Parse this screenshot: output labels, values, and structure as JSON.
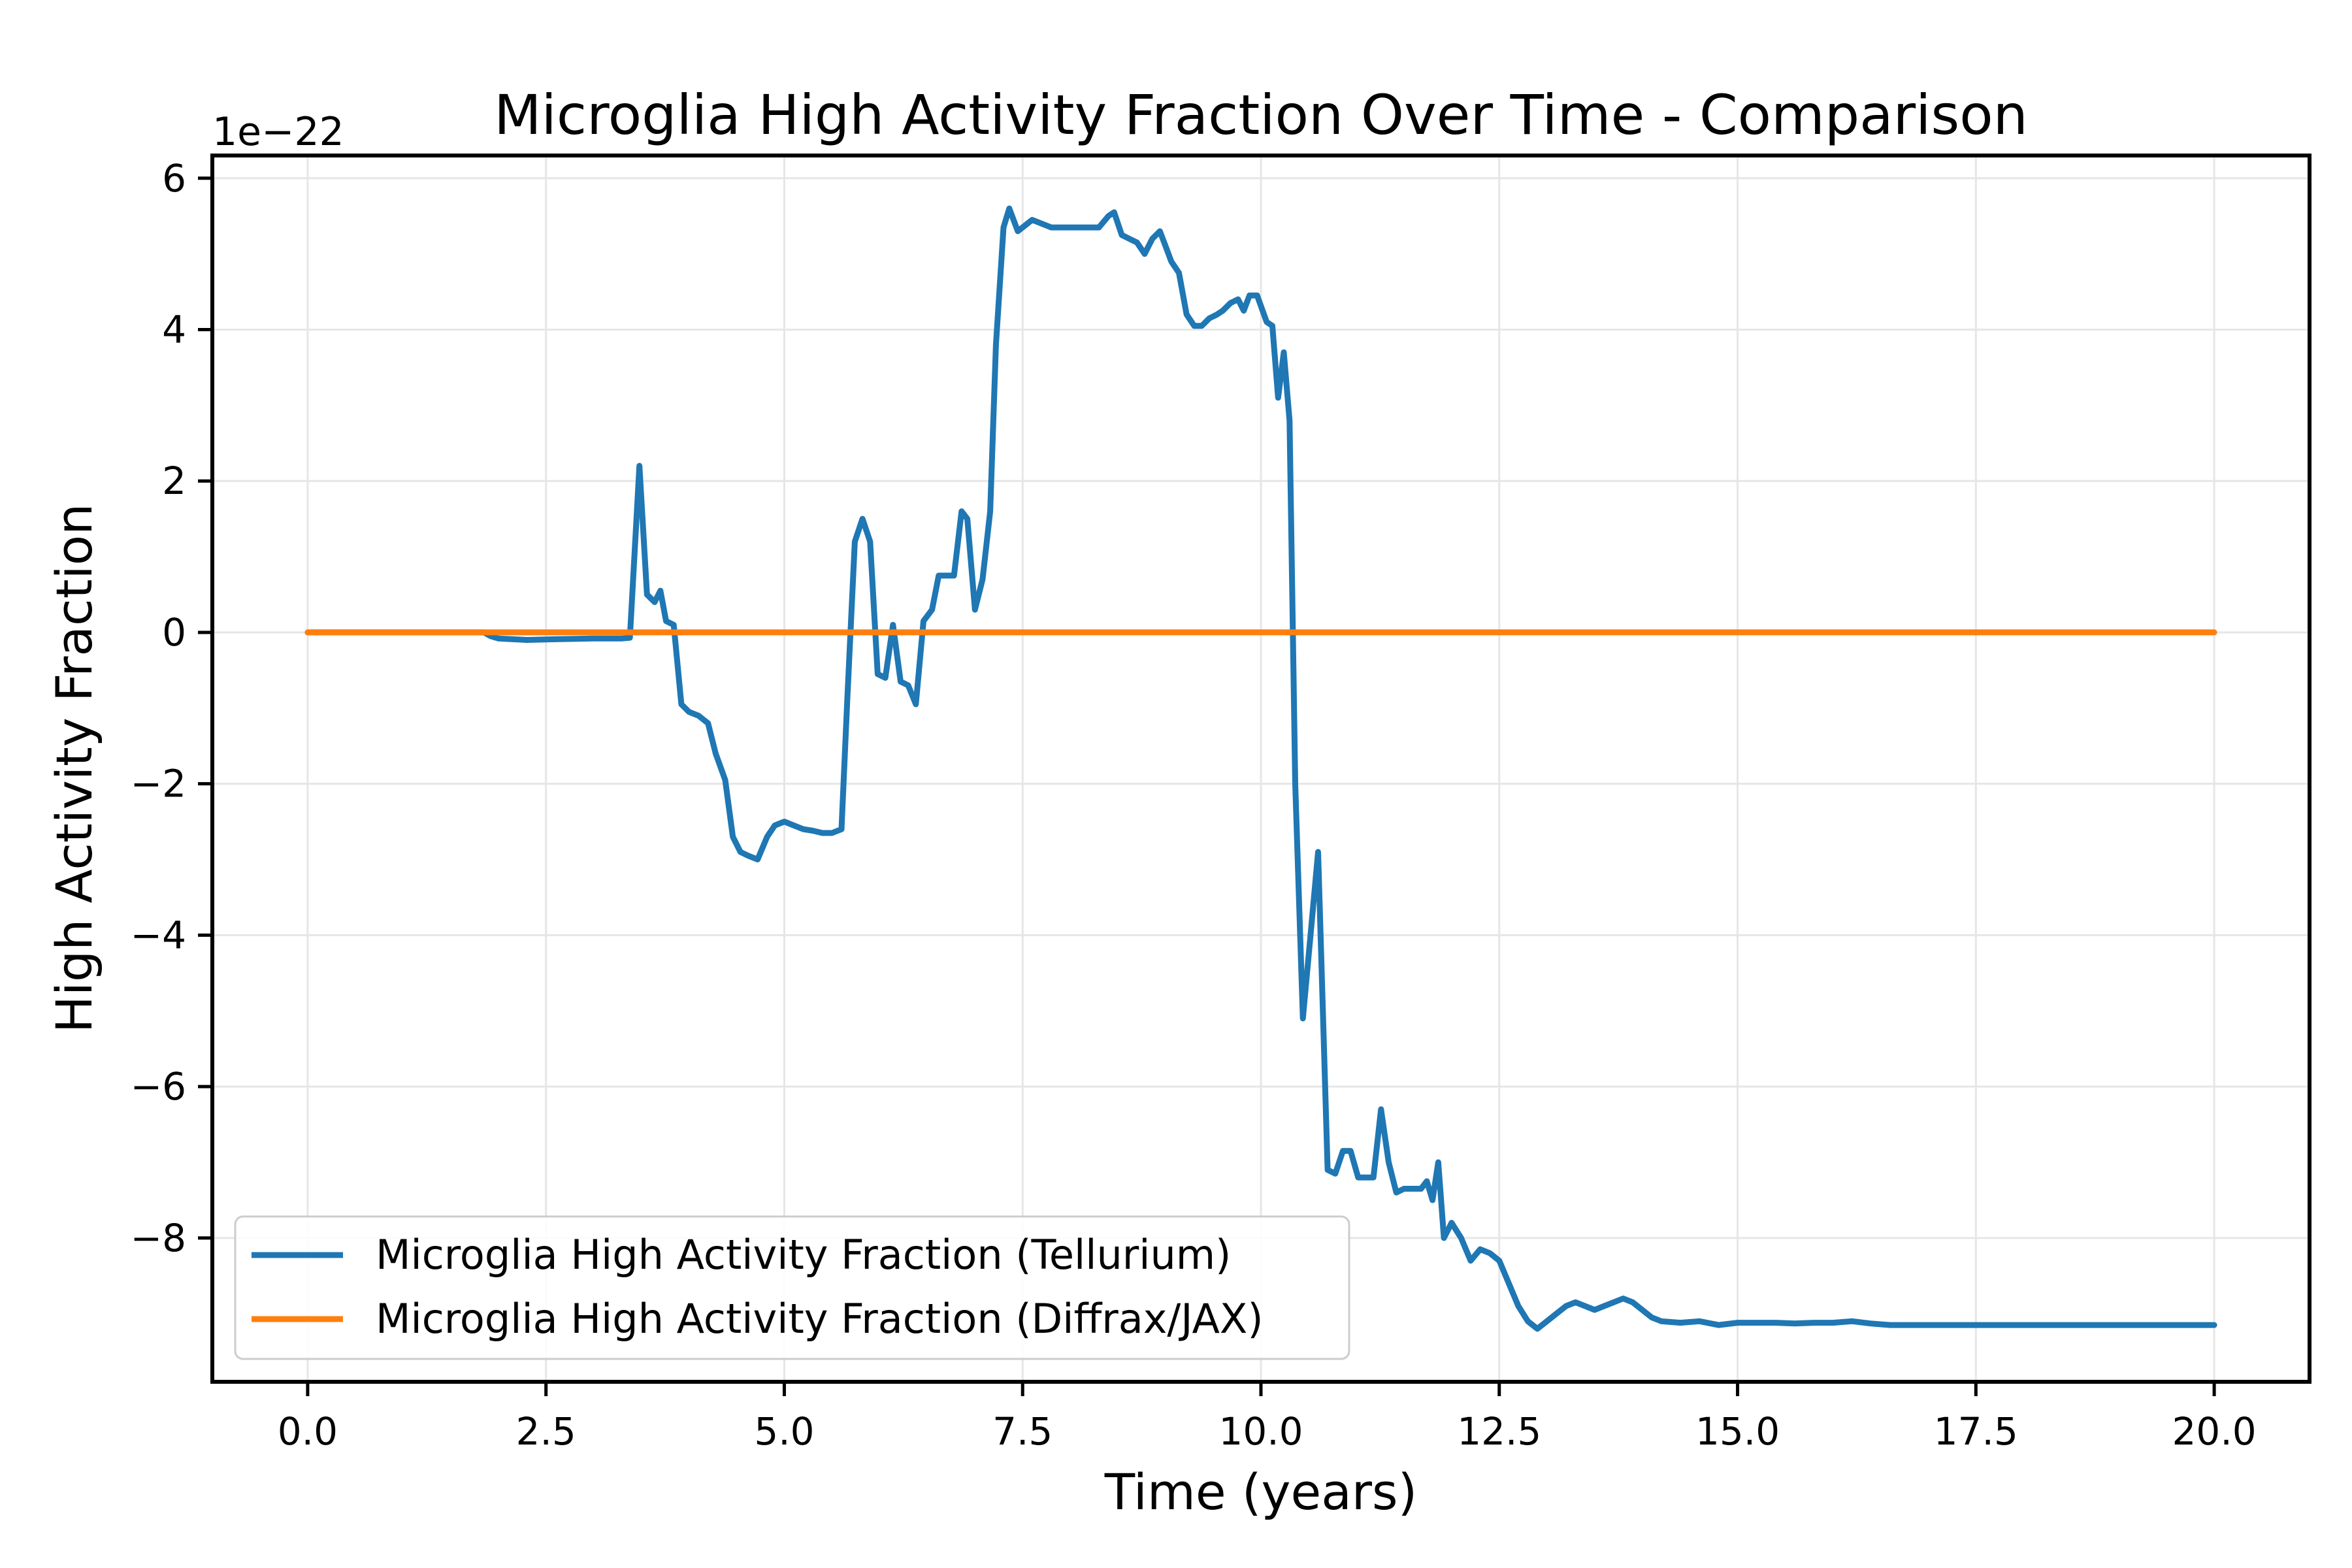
{
  "chart_data": {
    "type": "line",
    "title": "Microglia High Activity Fraction Over Time - Comparison",
    "xlabel": "Time (years)",
    "ylabel": "High Activity Fraction",
    "y_offset_label": "1e−22",
    "xlim": [
      -1.0,
      21.0
    ],
    "ylim": [
      -9.9,
      6.3
    ],
    "xticks": [
      0.0,
      2.5,
      5.0,
      7.5,
      10.0,
      12.5,
      15.0,
      17.5,
      20.0
    ],
    "xtick_labels": [
      "0.0",
      "2.5",
      "5.0",
      "7.5",
      "10.0",
      "12.5",
      "15.0",
      "17.5",
      "20.0"
    ],
    "yticks": [
      6,
      4,
      2,
      0,
      -2,
      -4,
      -6,
      -8
    ],
    "ytick_labels": [
      "6",
      "4",
      "2",
      "0",
      "−2",
      "−4",
      "−6",
      "−8"
    ],
    "grid": true,
    "legend_position": "lower-left",
    "series": [
      {
        "name": "Microglia High Activity Fraction (Tellurium)",
        "color": "#1f77b4",
        "x": [
          0.0,
          1.0,
          1.85,
          1.92,
          2.0,
          2.3,
          2.6,
          3.0,
          3.3,
          3.38,
          3.48,
          3.56,
          3.64,
          3.7,
          3.76,
          3.84,
          3.92,
          4.0,
          4.1,
          4.2,
          4.28,
          4.38,
          4.46,
          4.54,
          4.62,
          4.72,
          4.82,
          4.9,
          5.0,
          5.1,
          5.2,
          5.3,
          5.4,
          5.5,
          5.6,
          5.66,
          5.74,
          5.82,
          5.9,
          5.98,
          6.06,
          6.14,
          6.22,
          6.3,
          6.38,
          6.46,
          6.55,
          6.62,
          6.7,
          6.78,
          6.86,
          6.92,
          7.0,
          7.08,
          7.16,
          7.22,
          7.3,
          7.36,
          7.45,
          7.55,
          7.6,
          7.7,
          7.8,
          8.0,
          8.2,
          8.3,
          8.4,
          8.46,
          8.54,
          8.62,
          8.7,
          8.78,
          8.86,
          8.94,
          9.0,
          9.06,
          9.14,
          9.22,
          9.3,
          9.38,
          9.46,
          9.54,
          9.6,
          9.68,
          9.76,
          9.82,
          9.88,
          9.96,
          10.06,
          10.12,
          10.18,
          10.24,
          10.3,
          10.36,
          10.44,
          10.52,
          10.6,
          10.7,
          10.78,
          10.86,
          10.94,
          11.02,
          11.1,
          11.18,
          11.26,
          11.34,
          11.42,
          11.5,
          11.6,
          11.68,
          11.74,
          11.8,
          11.86,
          11.92,
          12.0,
          12.1,
          12.2,
          12.3,
          12.4,
          12.5,
          12.6,
          12.7,
          12.8,
          12.9,
          13.0,
          13.1,
          13.2,
          13.3,
          13.4,
          13.5,
          13.6,
          13.7,
          13.8,
          13.9,
          14.0,
          14.1,
          14.2,
          14.4,
          14.6,
          14.8,
          15.0,
          15.2,
          15.4,
          15.6,
          15.8,
          16.0,
          16.2,
          16.4,
          16.6,
          17.0,
          18.0,
          19.0,
          20.0
        ],
        "y": [
          0.0,
          0.0,
          0.0,
          -0.05,
          -0.08,
          -0.1,
          -0.09,
          -0.08,
          -0.08,
          -0.07,
          2.2,
          0.5,
          0.4,
          0.55,
          0.15,
          0.1,
          -0.95,
          -1.05,
          -1.1,
          -1.2,
          -1.6,
          -1.95,
          -2.7,
          -2.9,
          -2.95,
          -3.0,
          -2.7,
          -2.55,
          -2.5,
          -2.55,
          -2.6,
          -2.62,
          -2.65,
          -2.65,
          -2.6,
          -0.9,
          1.2,
          1.5,
          1.2,
          -0.55,
          -0.6,
          0.1,
          -0.65,
          -0.7,
          -0.95,
          0.15,
          0.3,
          0.75,
          0.75,
          0.75,
          1.6,
          1.5,
          0.3,
          0.7,
          1.6,
          3.8,
          5.35,
          5.6,
          5.3,
          5.4,
          5.45,
          5.4,
          5.35,
          5.35,
          5.35,
          5.35,
          5.5,
          5.55,
          5.25,
          5.2,
          5.15,
          5.0,
          5.2,
          5.3,
          5.1,
          4.9,
          4.75,
          4.2,
          4.05,
          4.05,
          4.15,
          4.2,
          4.25,
          4.35,
          4.4,
          4.25,
          4.45,
          4.45,
          4.1,
          4.05,
          3.1,
          3.7,
          2.8,
          -2.0,
          -5.1,
          -4.0,
          -2.9,
          -7.1,
          -7.15,
          -6.85,
          -6.85,
          -7.2,
          -7.2,
          -7.2,
          -6.3,
          -7.0,
          -7.4,
          -7.35,
          -7.35,
          -7.35,
          -7.25,
          -7.5,
          -7.0,
          -8.0,
          -7.8,
          -8.0,
          -8.3,
          -8.15,
          -8.2,
          -8.3,
          -8.6,
          -8.9,
          -9.1,
          -9.2,
          -9.1,
          -9.0,
          -8.9,
          -8.85,
          -8.9,
          -8.95,
          -8.9,
          -8.85,
          -8.8,
          -8.85,
          -8.95,
          -9.05,
          -9.1,
          -9.12,
          -9.1,
          -9.15,
          -9.12,
          -9.12,
          -9.12,
          -9.13,
          -9.12,
          -9.12,
          -9.1,
          -9.13,
          -9.15,
          -9.15,
          -9.15,
          -9.15,
          -9.15
        ]
      },
      {
        "name": "Microglia High Activity Fraction (Diffrax/JAX)",
        "color": "#ff7f0e",
        "x": [
          0.0,
          20.0
        ],
        "y": [
          0.0,
          0.0
        ]
      }
    ]
  }
}
